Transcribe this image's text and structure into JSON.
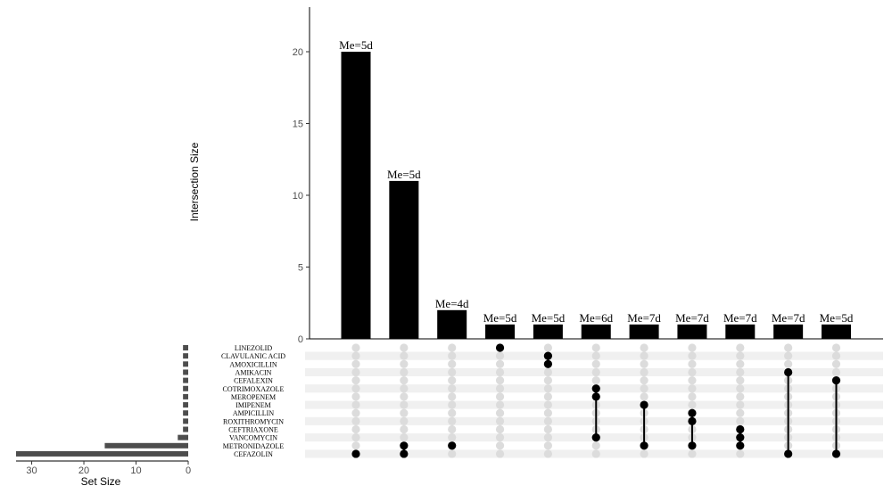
{
  "chart_data": {
    "type": "upset",
    "ylabel": "Intersection Size",
    "set_size_label": "Set Size",
    "y_ticks": [
      "0",
      "5",
      "10",
      "15",
      "20"
    ],
    "ylim": [
      0,
      22
    ],
    "set_size_ticks": [
      "30",
      "20",
      "10",
      "0"
    ],
    "set_size_lim": [
      0,
      33
    ],
    "sets": [
      {
        "name": "LINEZOLID",
        "size": 1
      },
      {
        "name": "CLAVULANIC ACID",
        "size": 1
      },
      {
        "name": "AMOXICILLIN",
        "size": 1
      },
      {
        "name": "AMIKACIN",
        "size": 1
      },
      {
        "name": "CEFALEXIN",
        "size": 1
      },
      {
        "name": "COTRIMOXAZOLE",
        "size": 1
      },
      {
        "name": "MEROPENEM",
        "size": 1
      },
      {
        "name": "IMIPENEM",
        "size": 1
      },
      {
        "name": "AMPICILLIN",
        "size": 1
      },
      {
        "name": "ROXITHROMYCIN",
        "size": 1
      },
      {
        "name": "CEFTRIAXONE",
        "size": 1
      },
      {
        "name": "VANCOMYCIN",
        "size": 2
      },
      {
        "name": "METRONIDAZOLE",
        "size": 16
      },
      {
        "name": "CEFAZOLIN",
        "size": 33
      }
    ],
    "intersections": [
      {
        "size": 20,
        "label": "Me=5d",
        "sets": [
          "CEFAZOLIN"
        ]
      },
      {
        "size": 11,
        "label": "Me=5d",
        "sets": [
          "METRONIDAZOLE",
          "CEFAZOLIN"
        ]
      },
      {
        "size": 2,
        "label": "Me=4d",
        "sets": [
          "METRONIDAZOLE"
        ]
      },
      {
        "size": 1,
        "label": "Me=5d",
        "sets": [
          "LINEZOLID"
        ]
      },
      {
        "size": 1,
        "label": "Me=5d",
        "sets": [
          "CLAVULANIC ACID",
          "AMOXICILLIN"
        ]
      },
      {
        "size": 1,
        "label": "Me=6d",
        "sets": [
          "COTRIMOXAZOLE",
          "MEROPENEM",
          "VANCOMYCIN"
        ]
      },
      {
        "size": 1,
        "label": "Me=7d",
        "sets": [
          "IMIPENEM",
          "METRONIDAZOLE"
        ]
      },
      {
        "size": 1,
        "label": "Me=7d",
        "sets": [
          "AMPICILLIN",
          "ROXITHROMYCIN",
          "METRONIDAZOLE"
        ]
      },
      {
        "size": 1,
        "label": "Me=7d",
        "sets": [
          "CEFTRIAXONE",
          "VANCOMYCIN",
          "METRONIDAZOLE"
        ]
      },
      {
        "size": 1,
        "label": "Me=7d",
        "sets": [
          "AMIKACIN",
          "CEFAZOLIN"
        ]
      },
      {
        "size": 1,
        "label": "Me=5d",
        "sets": [
          "CEFALEXIN",
          "CEFAZOLIN"
        ]
      }
    ],
    "colors": {
      "bar": "#000000",
      "set_bar": "#4d4d4d",
      "dot_active": "#000000",
      "dot_inactive": "#dcdcdc",
      "stripe": "#f0f0f0"
    }
  }
}
